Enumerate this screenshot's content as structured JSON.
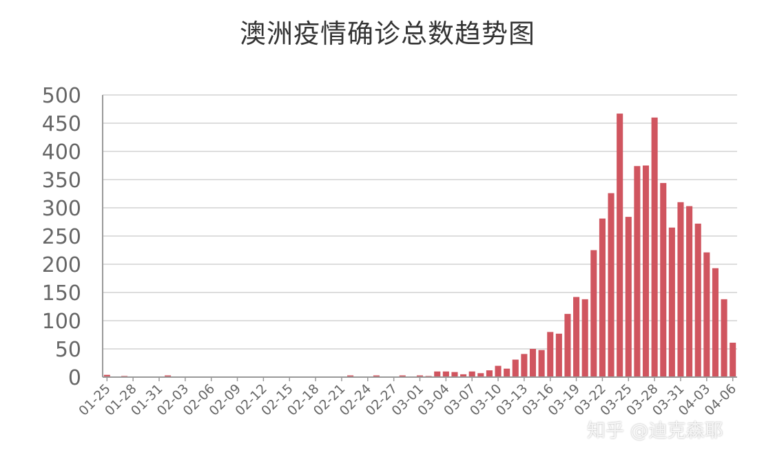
{
  "chart_data": {
    "type": "bar",
    "title": "澳洲疫情确诊总数趋势图",
    "xlabel": "",
    "ylabel": "",
    "ylim": [
      0,
      500
    ],
    "yticks": [
      0,
      50,
      100,
      150,
      200,
      250,
      300,
      350,
      400,
      450,
      500
    ],
    "grid": true,
    "bar_color": "#d0555f",
    "categories": [
      "01-25",
      "01-26",
      "01-27",
      "01-28",
      "01-29",
      "01-30",
      "01-31",
      "02-01",
      "02-02",
      "02-03",
      "02-04",
      "02-05",
      "02-06",
      "02-07",
      "02-08",
      "02-09",
      "02-10",
      "02-11",
      "02-12",
      "02-13",
      "02-14",
      "02-15",
      "02-16",
      "02-17",
      "02-18",
      "02-19",
      "02-20",
      "02-21",
      "02-22",
      "02-23",
      "02-24",
      "02-25",
      "02-26",
      "02-27",
      "02-28",
      "02-29",
      "03-01",
      "03-02",
      "03-03",
      "03-04",
      "03-05",
      "03-06",
      "03-07",
      "03-08",
      "03-09",
      "03-10",
      "03-11",
      "03-12",
      "03-13",
      "03-14",
      "03-15",
      "03-16",
      "03-17",
      "03-18",
      "03-19",
      "03-20",
      "03-21",
      "03-22",
      "03-23",
      "03-24",
      "03-25",
      "03-26",
      "03-27",
      "03-28",
      "03-29",
      "03-30",
      "03-31",
      "04-01",
      "04-02",
      "04-03",
      "04-04",
      "04-05",
      "04-06"
    ],
    "values": [
      4,
      0,
      2,
      0,
      1,
      1,
      0,
      3,
      0,
      0,
      1,
      1,
      1,
      0,
      0,
      0,
      0,
      0,
      0,
      0,
      0,
      0,
      0,
      0,
      0,
      0,
      0,
      1,
      3,
      1,
      0,
      3,
      0,
      0,
      3,
      0,
      3,
      2,
      10,
      10,
      9,
      5,
      10,
      7,
      12,
      20,
      15,
      31,
      41,
      50,
      48,
      80,
      77,
      112,
      142,
      138,
      225,
      281,
      326,
      467,
      284,
      374,
      375,
      460,
      344,
      265,
      310,
      303,
      272,
      221,
      193,
      138,
      61
    ],
    "tick_labels": [
      "01-25",
      "01-28",
      "01-31",
      "02-03",
      "02-06",
      "02-09",
      "02-12",
      "02-15",
      "02-18",
      "02-21",
      "02-24",
      "02-27",
      "03-01",
      "03-04",
      "03-07",
      "03-10",
      "03-13",
      "03-16",
      "03-19",
      "03-22",
      "03-25",
      "03-28",
      "03-31",
      "04-03",
      "04-06"
    ]
  },
  "watermark": "知乎 @迪克森耶"
}
